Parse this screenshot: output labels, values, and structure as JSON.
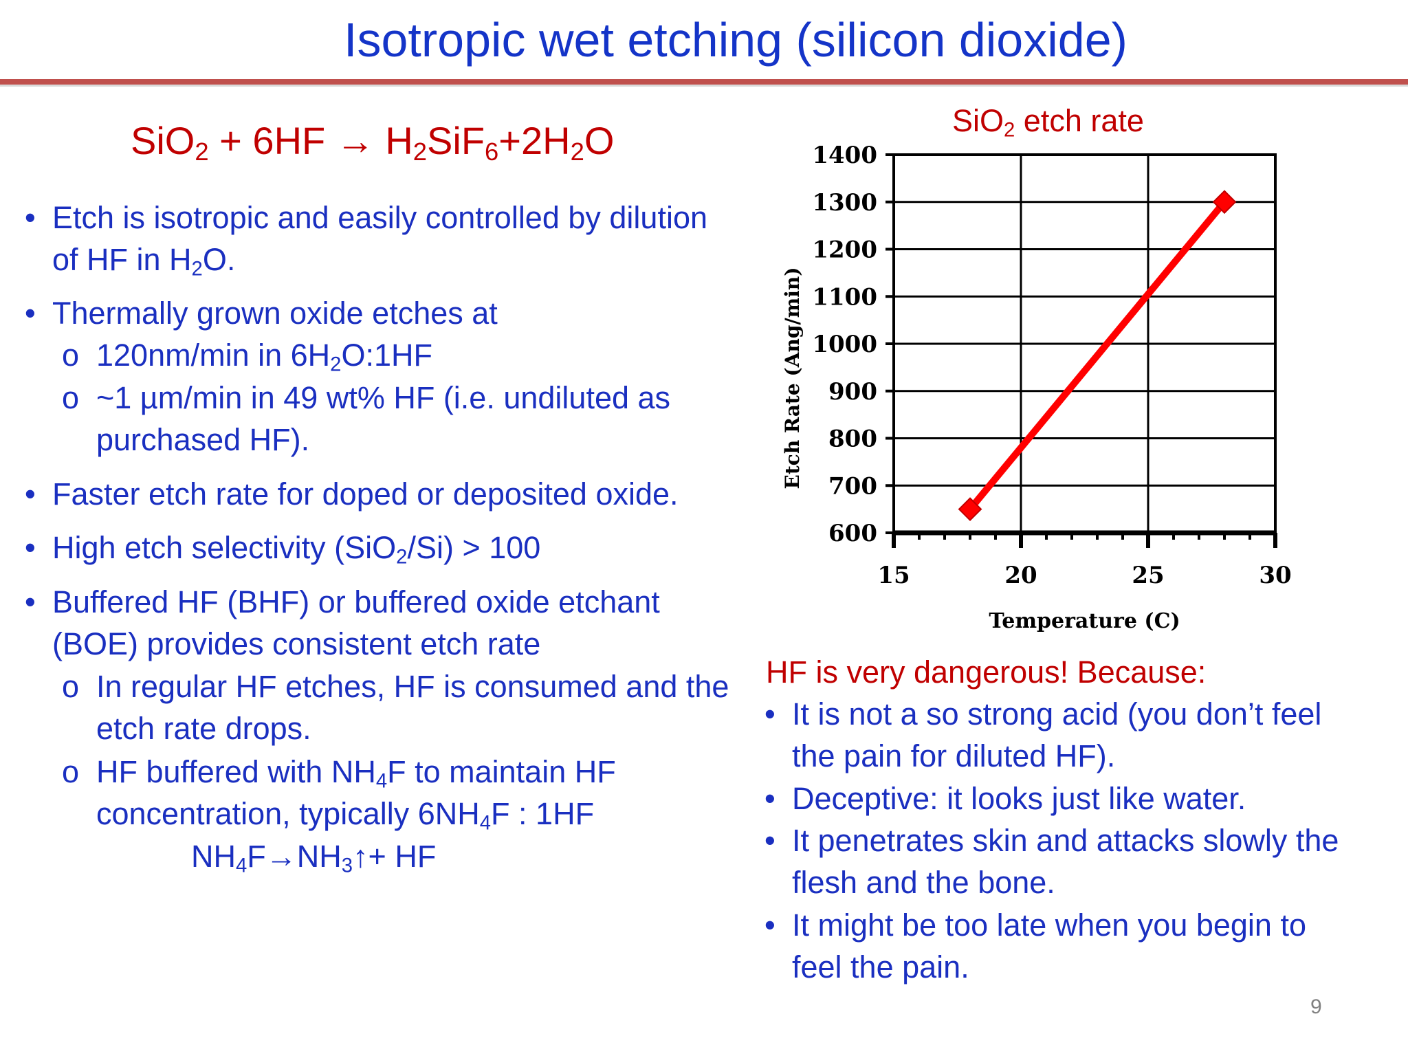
{
  "slide": {
    "title": "Isotropic wet etching (silicon dioxide)",
    "page_number": "9"
  },
  "equation": {
    "parts": [
      "SiO",
      "2",
      " + 6HF → H",
      "2",
      "SiF",
      "6",
      "+2H",
      "2",
      "O"
    ]
  },
  "left_bullets": [
    {
      "lines": [
        [
          "Etch is isotropic and easily controlled by dilution"
        ],
        [
          "of HF in H",
          "2",
          "O."
        ]
      ]
    },
    {
      "lines": [
        [
          "Thermally grown oxide etches at"
        ]
      ]
    },
    {
      "lines": [
        [
          "120nm/min in 6H",
          "2",
          "O:1HF"
        ]
      ]
    },
    {
      "lines": [
        [
          "~1 µm/min in 49 wt% HF (i.e. undiluted as"
        ],
        [
          "purchased HF)."
        ]
      ]
    },
    {
      "lines": [
        [
          "Faster etch rate for doped or deposited oxide."
        ]
      ]
    },
    {
      "lines": [
        [
          "High etch selectivity (SiO",
          "2",
          "/Si) > 100"
        ]
      ]
    },
    {
      "lines": [
        [
          "Buffered HF (BHF) or buffered oxide etchant"
        ],
        [
          "(BOE) provides consistent etch rate"
        ]
      ]
    },
    {
      "lines": [
        [
          "In regular HF etches, HF is consumed and the"
        ],
        [
          "etch rate drops."
        ]
      ]
    },
    {
      "lines": [
        [
          "HF buffered with NH",
          "4",
          "F to maintain HF"
        ],
        [
          "concentration, typically 6NH",
          "4",
          "F : 1HF"
        ]
      ]
    },
    {
      "lines": [
        [
          "NH",
          "4",
          "F→NH",
          "3",
          "↑+ HF"
        ]
      ]
    }
  ],
  "bullet_symbols": {
    "main": "•",
    "sub": "o"
  },
  "warning": {
    "heading": "HF is very dangerous! Because:",
    "items": [
      {
        "lines": [
          "It is not a so strong acid (you don’t feel",
          "the pain for diluted HF)."
        ]
      },
      {
        "lines": [
          "Deceptive: it looks just like water."
        ]
      },
      {
        "lines": [
          "It penetrates skin and attacks slowly the",
          "flesh and the bone."
        ]
      },
      {
        "lines": [
          "It might be too late when you begin to",
          "feel the pain."
        ]
      }
    ]
  },
  "chart_data": {
    "type": "line",
    "title_parts": [
      "SiO",
      "2",
      " etch rate"
    ],
    "xlabel": "Temperature (C)",
    "ylabel": "Etch Rate (Ang/min)",
    "xlim": [
      15,
      30
    ],
    "ylim": [
      600,
      1400
    ],
    "xticks": [
      15,
      20,
      25,
      30
    ],
    "yticks": [
      600,
      700,
      800,
      900,
      1000,
      1100,
      1200,
      1300,
      1400
    ],
    "grid": true,
    "series": [
      {
        "x": [
          18,
          28
        ],
        "y": [
          650,
          1300
        ],
        "color": "#ff0000",
        "marker": "diamond"
      }
    ]
  }
}
